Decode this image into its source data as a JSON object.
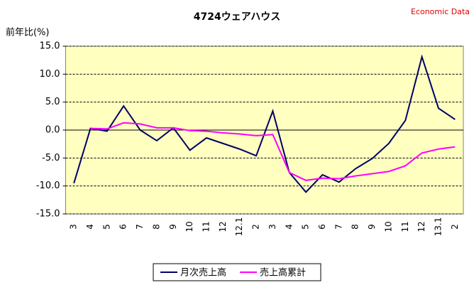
{
  "chart_data": {
    "type": "line",
    "title": "4724ウェアハウス",
    "source": "Economic Data",
    "y_label": "前年比(%)",
    "categories": [
      "3",
      "4",
      "5",
      "6",
      "7",
      "8",
      "9",
      "10",
      "11",
      "12",
      "12.1",
      "2",
      "3",
      "4",
      "5",
      "6",
      "7",
      "8",
      "9",
      "10",
      "11",
      "12",
      "13.1",
      "2"
    ],
    "series": [
      {
        "name": "月次売上高",
        "color": "#000066",
        "values": [
          -9.5,
          0.3,
          -0.2,
          4.3,
          0,
          -1.9,
          0.4,
          -3.6,
          -1.4,
          -2.4,
          -3.4,
          -4.6,
          3.4,
          -7.6,
          -11.1,
          -8.0,
          -9.3,
          -6.9,
          -5.1,
          -2.4,
          1.7,
          13.1,
          3.9,
          1.9
        ]
      },
      {
        "name": "売上高累計",
        "color": "#ff00ff",
        "values": [
          null,
          0.3,
          0.2,
          1.3,
          1.1,
          0.4,
          0.4,
          -0.1,
          -0.2,
          -0.5,
          -0.7,
          -1.0,
          -0.8,
          -7.6,
          -9.0,
          -8.6,
          -8.7,
          -8.2,
          -7.8,
          -7.4,
          -6.4,
          -4.1,
          -3.4,
          -3.0
        ]
      }
    ],
    "ylim": [
      -15,
      15
    ],
    "yticks": [
      {
        "value": -15,
        "label": "-15.0"
      },
      {
        "value": -10,
        "label": "-10.0"
      },
      {
        "value": -5,
        "label": "-5.0"
      },
      {
        "value": 0,
        "label": "0.0"
      },
      {
        "value": 5,
        "label": "5.0"
      },
      {
        "value": 10,
        "label": "10.0"
      },
      {
        "value": 15,
        "label": "15.0"
      }
    ],
    "grid": true,
    "legend": "bottom",
    "plot_background": "#ffffc0"
  }
}
